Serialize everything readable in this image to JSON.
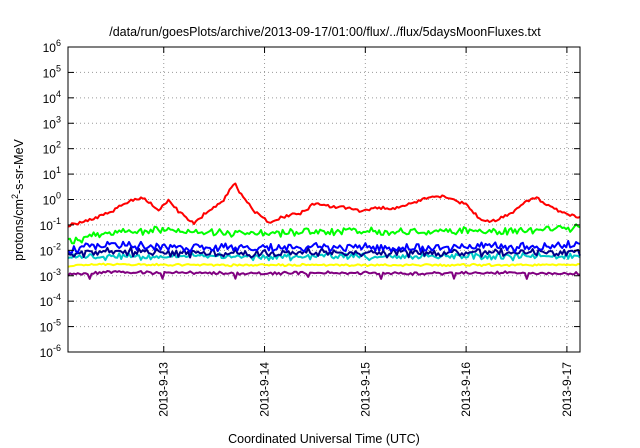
{
  "chart_data": {
    "type": "line",
    "title": "/data/run/goesPlots/archive/2013-09-17/01:00/flux/../flux/5daysMoonFluxes.txt",
    "xlabel": "Coordinated Universal Time (UTC)",
    "ylabel_parts": [
      "protons/cm",
      "2",
      "-s-sr-MeV"
    ],
    "yscale": "log",
    "ylim_exponents": [
      -6,
      6
    ],
    "y_ticks": [
      {
        "base": "10",
        "exp": "-6"
      },
      {
        "base": "10",
        "exp": "-5"
      },
      {
        "base": "10",
        "exp": "-4"
      },
      {
        "base": "10",
        "exp": "-3"
      },
      {
        "base": "10",
        "exp": "-2"
      },
      {
        "base": "10",
        "exp": "-1"
      },
      {
        "base": "10",
        "exp": "0"
      },
      {
        "base": "10",
        "exp": "1"
      },
      {
        "base": "10",
        "exp": "2"
      },
      {
        "base": "10",
        "exp": "3"
      },
      {
        "base": "10",
        "exp": "4"
      },
      {
        "base": "10",
        "exp": "5"
      },
      {
        "base": "10",
        "exp": "6"
      }
    ],
    "xlim_days": [
      12.05,
      17.13
    ],
    "x_ticks": [
      {
        "label": "2013-9-13",
        "day": 13
      },
      {
        "label": "2013-9-14",
        "day": 14
      },
      {
        "label": "2013-9-15",
        "day": 15
      },
      {
        "label": "2013-9-16",
        "day": 16
      },
      {
        "label": "2013-9-17",
        "day": 17
      }
    ],
    "grid": true,
    "legend": "none",
    "series": [
      {
        "color": "#800080",
        "x": [
          12.05,
          12.5,
          13.0,
          13.5,
          14.0,
          14.5,
          15.0,
          15.5,
          16.0,
          16.5,
          17.0,
          17.13
        ],
        "values": [
          0.0011,
          0.0014,
          0.0013,
          0.0013,
          0.0012,
          0.0013,
          0.0013,
          0.0012,
          0.0013,
          0.0013,
          0.0012,
          0.0012
        ]
      },
      {
        "color": "#ffff00",
        "x": [
          12.05,
          12.5,
          13.0,
          13.5,
          14.0,
          14.5,
          15.0,
          15.5,
          16.0,
          16.5,
          17.0,
          17.13
        ],
        "values": [
          0.0025,
          0.0028,
          0.0027,
          0.0026,
          0.0026,
          0.0027,
          0.0026,
          0.0026,
          0.0027,
          0.0026,
          0.0027,
          0.0027
        ]
      },
      {
        "color": "#00c8c8",
        "x": [
          12.05,
          12.5,
          13.0,
          13.5,
          14.0,
          14.5,
          15.0,
          15.5,
          16.0,
          16.5,
          17.0,
          17.13
        ],
        "values": [
          0.005,
          0.006,
          0.0055,
          0.006,
          0.0055,
          0.006,
          0.0055,
          0.0058,
          0.006,
          0.0055,
          0.0058,
          0.006
        ]
      },
      {
        "color": "#00008b",
        "x": [
          12.05,
          12.5,
          13.0,
          13.5,
          14.0,
          14.5,
          15.0,
          15.5,
          16.0,
          16.5,
          17.0,
          17.13
        ],
        "values": [
          0.007,
          0.009,
          0.008,
          0.008,
          0.0075,
          0.0085,
          0.008,
          0.0078,
          0.0085,
          0.008,
          0.0085,
          0.009
        ]
      },
      {
        "color": "#0000ff",
        "x": [
          12.05,
          12.5,
          13.0,
          13.5,
          14.0,
          14.5,
          15.0,
          15.5,
          16.0,
          16.5,
          17.0,
          17.13
        ],
        "values": [
          0.011,
          0.015,
          0.014,
          0.013,
          0.012,
          0.014,
          0.013,
          0.012,
          0.014,
          0.013,
          0.015,
          0.016
        ]
      },
      {
        "color": "#00ff00",
        "x": [
          12.05,
          12.5,
          13.0,
          13.5,
          14.0,
          14.5,
          15.0,
          15.5,
          16.0,
          16.5,
          17.0,
          17.13
        ],
        "values": [
          0.022,
          0.055,
          0.06,
          0.05,
          0.045,
          0.06,
          0.055,
          0.05,
          0.065,
          0.055,
          0.07,
          0.08
        ]
      },
      {
        "color": "#ff0000",
        "x": [
          12.05,
          12.2,
          12.35,
          12.5,
          12.65,
          12.8,
          12.95,
          13.05,
          13.15,
          13.3,
          13.45,
          13.6,
          13.7,
          13.78,
          13.9,
          14.05,
          14.2,
          14.35,
          14.5,
          14.65,
          14.8,
          14.95,
          15.1,
          15.3,
          15.5,
          15.7,
          15.85,
          16.0,
          16.15,
          16.3,
          16.45,
          16.6,
          16.7,
          16.8,
          16.95,
          17.05,
          17.13
        ],
        "values": [
          0.09,
          0.13,
          0.2,
          0.38,
          0.9,
          1.1,
          0.4,
          0.9,
          0.32,
          0.12,
          0.35,
          1.1,
          4.5,
          1.2,
          0.35,
          0.12,
          0.22,
          0.28,
          0.7,
          0.55,
          0.5,
          0.35,
          0.45,
          0.45,
          0.8,
          1.4,
          1.1,
          0.65,
          0.15,
          0.14,
          0.3,
          0.9,
          1.2,
          0.6,
          0.3,
          0.24,
          0.2
        ]
      }
    ]
  }
}
